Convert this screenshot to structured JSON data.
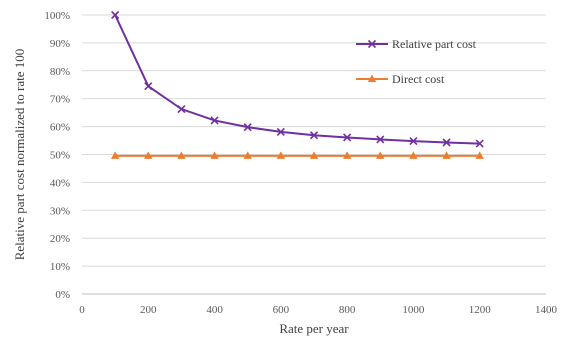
{
  "chart_data": {
    "type": "line",
    "title": "",
    "xlabel": "Rate per year",
    "ylabel": "Relative part cost normalized to rate 100",
    "xlim": [
      0,
      1400
    ],
    "ylim": [
      0,
      100
    ],
    "x_ticks": [
      "0",
      "200",
      "400",
      "600",
      "800",
      "1000",
      "1200",
      "1400"
    ],
    "y_ticks": [
      "0%",
      "10%",
      "20%",
      "30%",
      "40%",
      "50%",
      "60%",
      "70%",
      "80%",
      "90%",
      "100%"
    ],
    "grid": "horizontal",
    "legend_position": "top-right",
    "x": [
      100,
      200,
      300,
      400,
      500,
      600,
      700,
      800,
      900,
      1000,
      1100,
      1200
    ],
    "series": [
      {
        "name": "Relative part cost",
        "color": "#7030a0",
        "marker": "x",
        "values": [
          100,
          74.5,
          66.3,
          62.2,
          59.8,
          58.1,
          56.9,
          56.1,
          55.4,
          54.8,
          54.3,
          53.9
        ]
      },
      {
        "name": "Direct cost",
        "color": "#ed7d31",
        "marker": "triangle",
        "values": [
          49.5,
          49.5,
          49.5,
          49.5,
          49.5,
          49.5,
          49.5,
          49.5,
          49.5,
          49.5,
          49.5,
          49.5
        ]
      }
    ]
  }
}
